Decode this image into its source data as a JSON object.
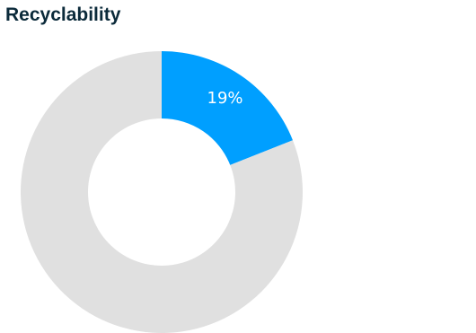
{
  "chart_data": {
    "type": "pie",
    "title": "Recyclability",
    "donut": true,
    "slices": [
      {
        "value": 19,
        "label": "19%",
        "color": "#009fff"
      },
      {
        "value": 81,
        "label": "",
        "color": "#e0e0e0"
      }
    ],
    "legend": "none"
  }
}
